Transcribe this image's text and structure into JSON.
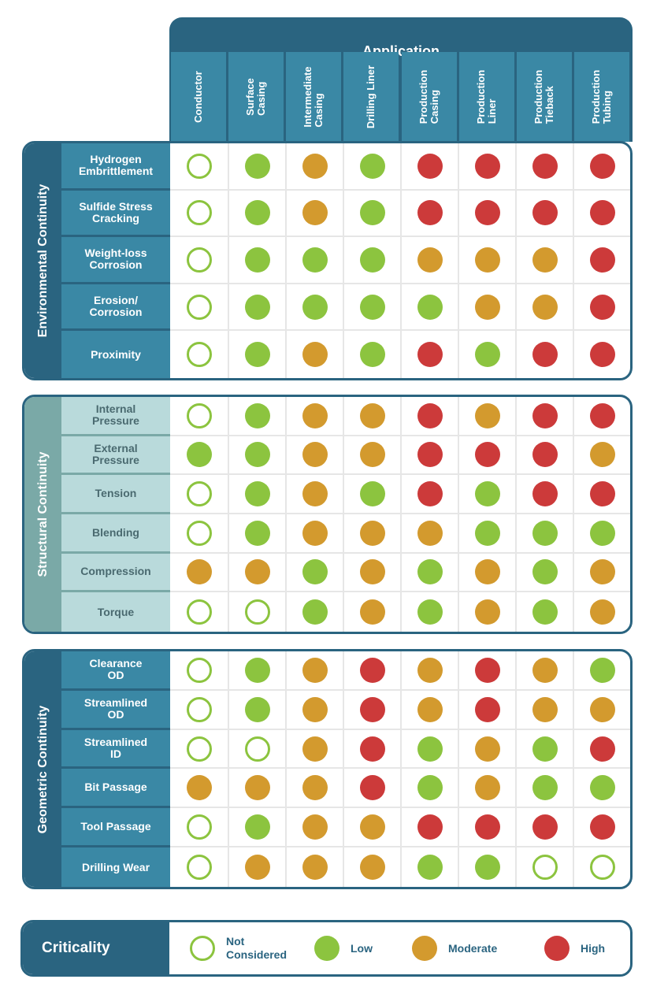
{
  "header": {
    "title": "Application",
    "columns": [
      "Conductor",
      "Surface\nCasing",
      "Intermediate\nCasing",
      "Drilling Liner",
      "Production\nCasing",
      "Production\nLiner",
      "Production\nTieback",
      "Production\nTubing"
    ]
  },
  "sections": [
    {
      "title": "Environmental Continuity",
      "rows": [
        {
          "label": "Hydrogen\nEmbrittlement",
          "values": [
            "nc",
            "low",
            "mod",
            "low",
            "high",
            "high",
            "high",
            "high"
          ]
        },
        {
          "label": "Sulfide Stress\nCracking",
          "values": [
            "nc",
            "low",
            "mod",
            "low",
            "high",
            "high",
            "high",
            "high"
          ]
        },
        {
          "label": "Weight-loss\nCorrosion",
          "values": [
            "nc",
            "low",
            "low",
            "low",
            "mod",
            "mod",
            "mod",
            "high"
          ]
        },
        {
          "label": "Erosion/\nCorrosion",
          "values": [
            "nc",
            "low",
            "low",
            "low",
            "low",
            "mod",
            "mod",
            "high"
          ]
        },
        {
          "label": "Proximity",
          "values": [
            "nc",
            "low",
            "mod",
            "low",
            "high",
            "low",
            "high",
            "high"
          ]
        }
      ]
    },
    {
      "title": "Structural Continuity",
      "rows": [
        {
          "label": "Internal\nPressure",
          "values": [
            "nc",
            "low",
            "mod",
            "mod",
            "high",
            "mod",
            "high",
            "high"
          ]
        },
        {
          "label": "External\nPressure",
          "values": [
            "low",
            "low",
            "mod",
            "mod",
            "high",
            "high",
            "high",
            "mod"
          ]
        },
        {
          "label": "Tension",
          "values": [
            "nc",
            "low",
            "mod",
            "low",
            "high",
            "low",
            "high",
            "high"
          ]
        },
        {
          "label": "Blending",
          "values": [
            "nc",
            "low",
            "mod",
            "mod",
            "mod",
            "low",
            "low",
            "low"
          ]
        },
        {
          "label": "Compression",
          "values": [
            "mod",
            "mod",
            "low",
            "mod",
            "low",
            "mod",
            "low",
            "mod"
          ]
        },
        {
          "label": "Torque",
          "values": [
            "nc",
            "nc",
            "low",
            "mod",
            "low",
            "mod",
            "low",
            "mod"
          ]
        }
      ]
    },
    {
      "title": "Geometric Continuity",
      "rows": [
        {
          "label": "Clearance\nOD",
          "values": [
            "nc",
            "low",
            "mod",
            "high",
            "mod",
            "high",
            "mod",
            "low"
          ]
        },
        {
          "label": "Streamlined\nOD",
          "values": [
            "nc",
            "low",
            "mod",
            "high",
            "mod",
            "high",
            "mod",
            "mod"
          ]
        },
        {
          "label": "Streamlined\nID",
          "values": [
            "nc",
            "nc",
            "mod",
            "high",
            "low",
            "mod",
            "low",
            "high"
          ]
        },
        {
          "label": "Bit Passage",
          "values": [
            "mod",
            "mod",
            "mod",
            "high",
            "low",
            "mod",
            "low",
            "low"
          ]
        },
        {
          "label": "Tool Passage",
          "values": [
            "nc",
            "low",
            "mod",
            "mod",
            "high",
            "high",
            "high",
            "high"
          ]
        },
        {
          "label": "Drilling Wear",
          "values": [
            "nc",
            "mod",
            "mod",
            "mod",
            "low",
            "low",
            "nc",
            "nc"
          ]
        }
      ]
    }
  ],
  "legend": {
    "title": "Criticality",
    "items": [
      {
        "key": "nc",
        "label": "Not\nConsidered"
      },
      {
        "key": "low",
        "label": "Low"
      },
      {
        "key": "mod",
        "label": "Moderate"
      },
      {
        "key": "high",
        "label": "High"
      }
    ]
  },
  "colors": {
    "dark_teal": "#2a6480",
    "mid_teal": "#3a88a5",
    "structural_side": "#7aa9a7",
    "structural_label": "#b9dadb",
    "low": "#8cc43f",
    "moderate": "#d39a2e",
    "high": "#cc3a3a"
  }
}
